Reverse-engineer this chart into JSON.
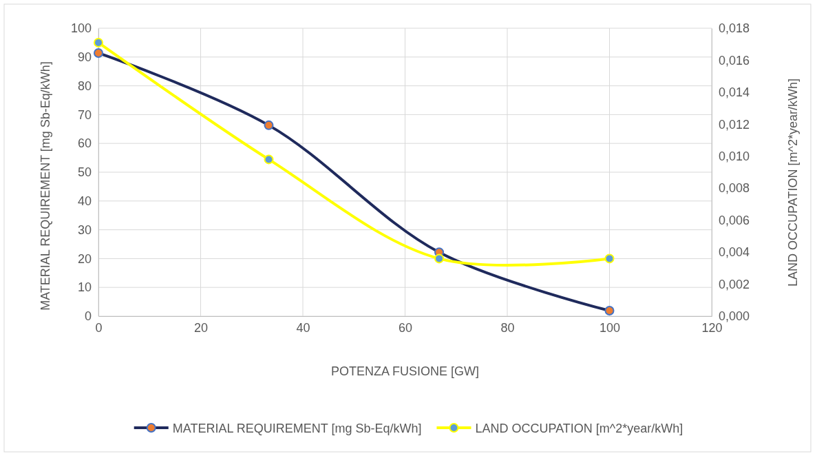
{
  "chart_data": {
    "type": "line",
    "xlabel": "POTENZA FUSIONE [GW]",
    "ylabel": "MATERIAL REQUIREMENT [mg Sb-Eq/kWh]",
    "y2label": "LAND OCCUPATION [m^2*year/kWh]",
    "x": [
      0,
      33.33,
      66.67,
      100
    ],
    "xlim": [
      0,
      120
    ],
    "xticks": [
      0,
      20,
      40,
      60,
      80,
      100,
      120
    ],
    "ylim": [
      0,
      100
    ],
    "yticks": [
      0,
      10,
      20,
      30,
      40,
      50,
      60,
      70,
      80,
      90,
      100
    ],
    "y2lim": [
      0,
      0.018
    ],
    "y2ticks": [
      {
        "value": 0,
        "label": "0,000"
      },
      {
        "value": 0.002,
        "label": "0,002"
      },
      {
        "value": 0.004,
        "label": "0,004"
      },
      {
        "value": 0.006,
        "label": "0,006"
      },
      {
        "value": 0.008,
        "label": "0,008"
      },
      {
        "value": 0.01,
        "label": "0,010"
      },
      {
        "value": 0.012,
        "label": "0,012"
      },
      {
        "value": 0.014,
        "label": "0,014"
      },
      {
        "value": 0.016,
        "label": "0,016"
      },
      {
        "value": 0.018,
        "label": "0,018"
      }
    ],
    "series": [
      {
        "name": "MATERIAL REQUIREMENT [mg Sb-Eq/kWh]",
        "color": "#1f2a5c",
        "values": [
          91.4,
          66.3,
          22.2,
          1.9
        ]
      },
      {
        "name": "LAND OCCUPATION [m^2*year/kWh]",
        "color": "#ffff00",
        "axis": "y2",
        "values": [
          0.0171,
          0.0098,
          0.0036,
          0.0036
        ]
      }
    ],
    "grid": true,
    "legend": "bottom",
    "marker": "circle",
    "line_style": "solid"
  }
}
